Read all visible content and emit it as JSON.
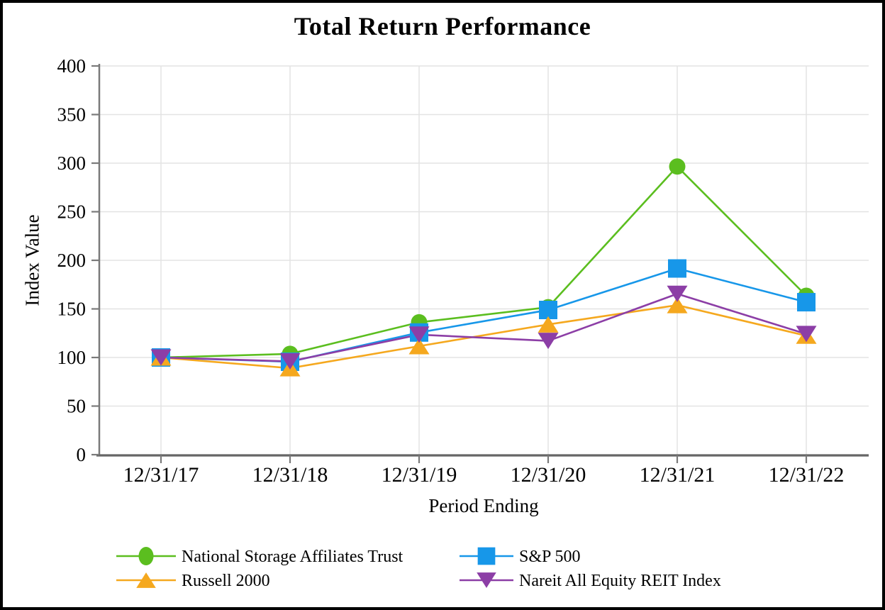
{
  "chart_data": {
    "type": "line",
    "title": "Total Return Performance",
    "xlabel": "Period Ending",
    "ylabel": "Index Value",
    "categories": [
      "12/31/17",
      "12/31/18",
      "12/31/19",
      "12/31/20",
      "12/31/21",
      "12/31/22"
    ],
    "ylim": [
      0,
      400
    ],
    "ytick_step": 50,
    "y_tick_labels": [
      "0",
      "50",
      "100",
      "150",
      "200",
      "250",
      "300",
      "350",
      "400"
    ],
    "grid": true,
    "legend_position": "bottom",
    "series": [
      {
        "name": "National Storage Affiliates Trust",
        "marker": "circle",
        "color": "#5BBE1F",
        "values": [
          100,
          103.7,
          136.2,
          151.7,
          296.5,
          163.5
        ]
      },
      {
        "name": "S&P 500",
        "marker": "square",
        "color": "#1797E9",
        "values": [
          100,
          95.6,
          125.7,
          148.9,
          191.6,
          156.9
        ]
      },
      {
        "name": "Russell 2000",
        "marker": "triangle-up",
        "color": "#F5A81E",
        "values": [
          100,
          89.0,
          111.7,
          134.0,
          153.9,
          122.4
        ]
      },
      {
        "name": "Nareit All Equity REIT Index",
        "marker": "triangle-down",
        "color": "#8C3EA6",
        "values": [
          100,
          96.0,
          123.5,
          117.1,
          165.5,
          124.2
        ]
      }
    ]
  },
  "colors": {
    "background": "#FFFFFF",
    "frame_border": "#000000",
    "gridline": "#E3E3E3",
    "y_axis": "#7A7A7A",
    "x_axis": "#666666",
    "tick": "#7A7A7A",
    "text": "#000000"
  }
}
